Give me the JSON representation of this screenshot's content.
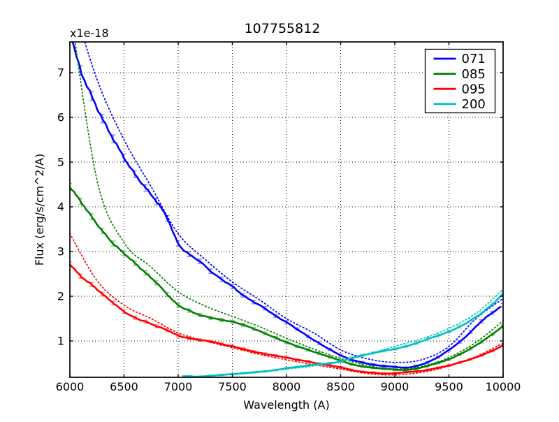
{
  "figure": {
    "background": "#ffffff"
  },
  "chart_data": {
    "type": "line",
    "title": "107755812",
    "xlabel": "Wavelength (A)",
    "ylabel": "Flux (erg/s/cm^2/A)",
    "offset_text": "x1e-18",
    "flux_unit_scale": "1e-18",
    "xlim": [
      6000,
      10000
    ],
    "ylim": [
      0.1875,
      7.6875
    ],
    "xticks": [
      6000,
      6500,
      7000,
      7500,
      8000,
      8500,
      9000,
      9500,
      10000
    ],
    "yticks": [
      1,
      2,
      3,
      4,
      5,
      6,
      7
    ],
    "grid": true,
    "grid_style": "dotted",
    "legend": {
      "position": "upper right",
      "entries": [
        "071",
        "085",
        "095",
        "200"
      ]
    },
    "error_bars": {
      "sigma_base": 0.015,
      "sigma_scale": 0.013,
      "capsize": 3.2,
      "opacity": 0.45
    },
    "series": [
      {
        "name": "071",
        "color": "#0000ff",
        "style": "solid-with-errorbars-plus-dotted-model",
        "x": [
          6000,
          6100,
          6200,
          6300,
          6400,
          6500,
          6600,
          6700,
          6800,
          6900,
          7000,
          7100,
          7200,
          7300,
          7400,
          7500,
          7600,
          7700,
          7800,
          7900,
          8000,
          8100,
          8200,
          8300,
          8400,
          8500,
          8600,
          8700,
          8800,
          8900,
          9000,
          9100,
          9200,
          9300,
          9400,
          9500,
          9600,
          9700,
          9800,
          9900,
          10000
        ],
        "y": [
          7.9,
          7.05,
          6.48,
          5.97,
          5.52,
          5.1,
          4.73,
          4.42,
          4.12,
          3.74,
          3.18,
          2.94,
          2.78,
          2.56,
          2.38,
          2.22,
          2.02,
          1.87,
          1.73,
          1.56,
          1.42,
          1.26,
          1.1,
          0.95,
          0.81,
          0.68,
          0.58,
          0.52,
          0.47,
          0.44,
          0.42,
          0.4,
          0.44,
          0.52,
          0.64,
          0.8,
          0.98,
          1.2,
          1.44,
          1.63,
          1.8
        ],
        "model_x": [
          6000,
          6250,
          6500,
          6750,
          7000,
          7250,
          7500,
          7750,
          8000,
          8250,
          8500,
          8750,
          9000,
          9250,
          9500,
          9750,
          10000
        ],
        "model_y": [
          8.8,
          6.85,
          5.5,
          4.45,
          3.4,
          2.82,
          2.32,
          1.92,
          1.5,
          1.18,
          0.8,
          0.6,
          0.52,
          0.58,
          0.88,
          1.5,
          1.95
        ]
      },
      {
        "name": "085",
        "color": "#008000",
        "style": "solid-with-errorbars-plus-dotted-model",
        "x": [
          6000,
          6100,
          6200,
          6300,
          6400,
          6500,
          6600,
          6700,
          6800,
          6900,
          7000,
          7100,
          7200,
          7300,
          7400,
          7500,
          7600,
          7700,
          7800,
          7900,
          8000,
          8100,
          8200,
          8300,
          8400,
          8500,
          8600,
          8700,
          8800,
          8900,
          9000,
          9100,
          9200,
          9300,
          9400,
          9500,
          9600,
          9700,
          9800,
          9900,
          10000
        ],
        "y": [
          4.45,
          4.12,
          3.78,
          3.46,
          3.18,
          2.96,
          2.74,
          2.52,
          2.3,
          2.04,
          1.8,
          1.68,
          1.58,
          1.52,
          1.47,
          1.43,
          1.36,
          1.27,
          1.17,
          1.07,
          0.97,
          0.88,
          0.8,
          0.72,
          0.64,
          0.56,
          0.48,
          0.43,
          0.4,
          0.38,
          0.36,
          0.35,
          0.38,
          0.44,
          0.51,
          0.59,
          0.7,
          0.83,
          0.98,
          1.15,
          1.33
        ],
        "model_x": [
          6000,
          6250,
          6500,
          6750,
          7000,
          7250,
          7500,
          7750,
          8000,
          8250,
          8500,
          8750,
          9000,
          9250,
          9500,
          9750,
          10000
        ],
        "model_y": [
          8.5,
          4.6,
          3.2,
          2.65,
          2.1,
          1.78,
          1.55,
          1.32,
          1.06,
          0.82,
          0.61,
          0.45,
          0.37,
          0.43,
          0.63,
          0.97,
          1.45
        ]
      },
      {
        "name": "095",
        "color": "#ff0000",
        "style": "solid-with-errorbars-plus-dotted-model",
        "x": [
          6000,
          6100,
          6200,
          6300,
          6400,
          6500,
          6600,
          6700,
          6800,
          6900,
          7000,
          7100,
          7200,
          7300,
          7400,
          7500,
          7600,
          7700,
          7800,
          7900,
          8000,
          8100,
          8200,
          8300,
          8400,
          8500,
          8600,
          8700,
          8800,
          8900,
          9000,
          9100,
          9200,
          9300,
          9400,
          9500,
          9600,
          9700,
          9800,
          9900,
          10000
        ],
        "y": [
          2.72,
          2.45,
          2.26,
          2.05,
          1.85,
          1.66,
          1.52,
          1.43,
          1.33,
          1.24,
          1.12,
          1.06,
          1.02,
          0.99,
          0.93,
          0.88,
          0.82,
          0.76,
          0.71,
          0.67,
          0.63,
          0.58,
          0.54,
          0.49,
          0.45,
          0.41,
          0.35,
          0.31,
          0.29,
          0.27,
          0.28,
          0.3,
          0.32,
          0.35,
          0.4,
          0.45,
          0.52,
          0.59,
          0.68,
          0.78,
          0.9
        ],
        "model_x": [
          6000,
          6250,
          6500,
          6750,
          7000,
          7250,
          7500,
          7750,
          8000,
          8250,
          8500,
          8750,
          9000,
          9250,
          9500,
          9750,
          10000
        ],
        "model_y": [
          3.4,
          2.35,
          1.8,
          1.5,
          1.18,
          1.0,
          0.85,
          0.7,
          0.58,
          0.47,
          0.37,
          0.27,
          0.24,
          0.3,
          0.44,
          0.65,
          0.95
        ]
      },
      {
        "name": "200",
        "color": "#00bfbf",
        "style": "solid-with-errorbars-plus-dotted-model",
        "x": [
          7050,
          7100,
          7200,
          7300,
          7400,
          7500,
          7600,
          7700,
          7800,
          7900,
          8000,
          8100,
          8200,
          8300,
          8400,
          8500,
          8600,
          8700,
          8800,
          8900,
          9000,
          9100,
          9200,
          9300,
          9400,
          9500,
          9600,
          9700,
          9800,
          9900,
          10000
        ],
        "y": [
          0.21,
          0.21,
          0.2,
          0.22,
          0.24,
          0.26,
          0.28,
          0.3,
          0.32,
          0.35,
          0.39,
          0.42,
          0.45,
          0.48,
          0.5,
          0.54,
          0.62,
          0.68,
          0.73,
          0.78,
          0.82,
          0.88,
          0.95,
          1.04,
          1.12,
          1.21,
          1.32,
          1.46,
          1.62,
          1.82,
          2.05
        ],
        "model_x": [
          7050,
          7250,
          7500,
          7750,
          8000,
          8250,
          8500,
          8750,
          9000,
          9250,
          9500,
          9750,
          10000
        ],
        "model_y": [
          0.2,
          0.22,
          0.25,
          0.3,
          0.37,
          0.44,
          0.55,
          0.7,
          0.88,
          1.05,
          1.28,
          1.62,
          2.15
        ]
      }
    ]
  }
}
